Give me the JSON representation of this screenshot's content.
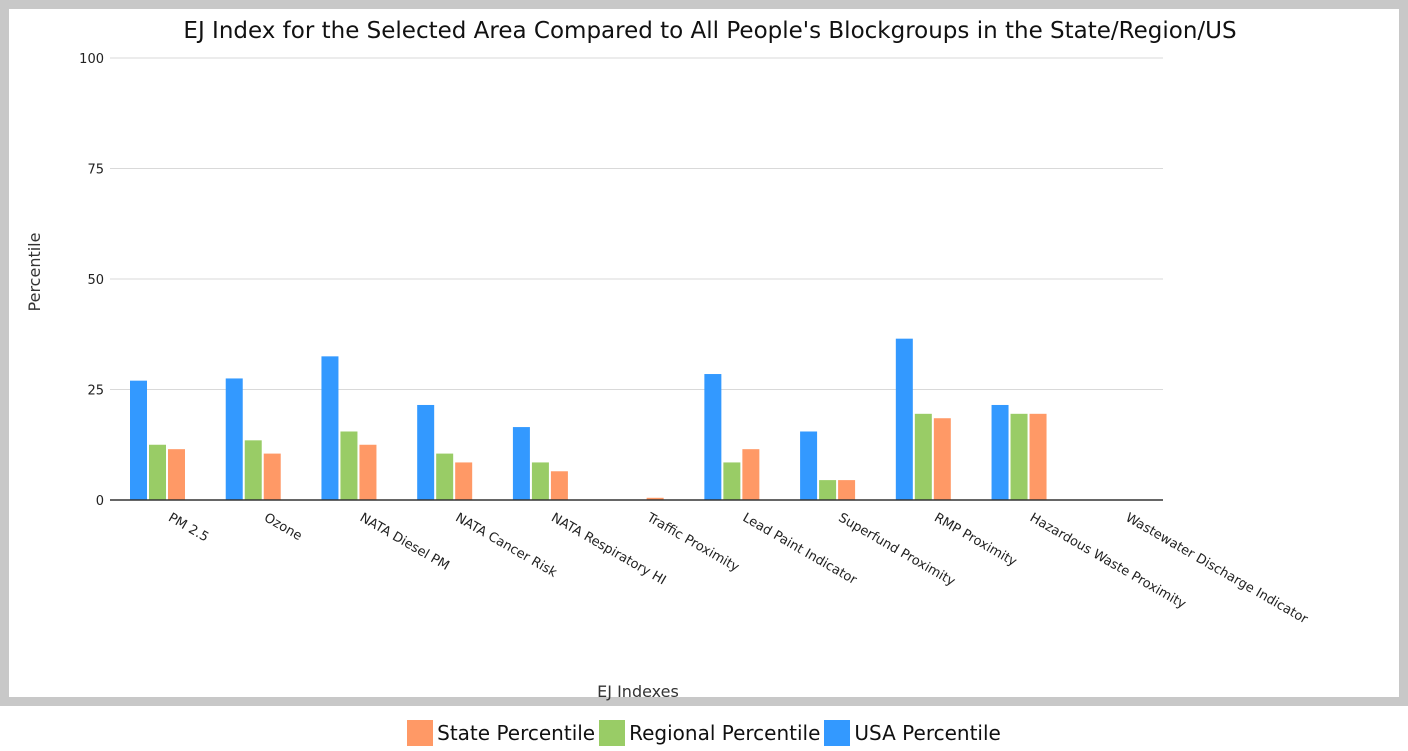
{
  "chart_data": {
    "type": "bar",
    "title": "EJ Index for the Selected Area Compared to All People's Blockgroups in the State/Region/US",
    "xlabel": "EJ Indexes",
    "ylabel": "Percentile",
    "ylim": [
      0,
      100
    ],
    "yticks": [
      "0",
      "25",
      "50",
      "75",
      "100"
    ],
    "grid": true,
    "legend_position": "bottom",
    "categories": [
      "PM 2.5",
      "Ozone",
      "NATA Diesel PM",
      "NATA Cancer Risk",
      "NATA Respiratory HI",
      "Traffic Proximity",
      "Lead Paint Indicator",
      "Superfund Proximity",
      "RMP Proximity",
      "Hazardous Waste Proximity",
      "Wastewater Discharge Indicator"
    ],
    "series": [
      {
        "name": "USA Percentile",
        "color": "#3399ff",
        "values": [
          27,
          27.5,
          32.5,
          21.5,
          16.5,
          0,
          28.5,
          15.5,
          36.5,
          21.5,
          0
        ]
      },
      {
        "name": "Regional Percentile",
        "color": "#99cc66",
        "values": [
          12.5,
          13.5,
          15.5,
          10.5,
          8.5,
          0,
          8.5,
          4.5,
          19.5,
          19.5,
          0
        ]
      },
      {
        "name": "State Percentile",
        "color": "#ff9966",
        "values": [
          11.5,
          10.5,
          12.5,
          8.5,
          6.5,
          0.5,
          11.5,
          4.5,
          18.5,
          19.5,
          0
        ]
      }
    ],
    "legend": [
      {
        "name": "State Percentile",
        "color": "#ff9966"
      },
      {
        "name": "Regional Percentile",
        "color": "#99cc66"
      },
      {
        "name": "USA Percentile",
        "color": "#3399ff"
      }
    ]
  }
}
